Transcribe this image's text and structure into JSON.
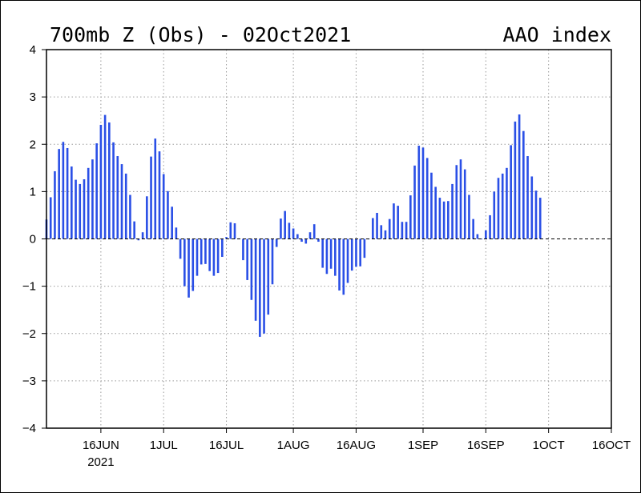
{
  "title_left": "700mb Z (Obs) - 02Oct2021",
  "title_right": "AAO index",
  "chart_data": {
    "type": "bar",
    "title": "700mb Z (Obs) - 02Oct2021",
    "subtitle": "AAO index",
    "xlabel": "",
    "ylabel": "",
    "ylim": [
      -4,
      4
    ],
    "yticks": [
      4,
      3,
      2,
      1,
      0,
      -1,
      -2,
      -3,
      -4
    ],
    "ytick_labels": [
      "4",
      "3",
      "2",
      "1",
      "0",
      "−1",
      "−2",
      "−3",
      "−4"
    ],
    "xlim": [
      "2021-06-03",
      "2021-10-16"
    ],
    "xticks": [
      "2021-06-16",
      "2021-07-01",
      "2021-07-16",
      "2021-08-01",
      "2021-08-16",
      "2021-09-01",
      "2021-09-16",
      "2021-10-01",
      "2021-10-16"
    ],
    "xtick_labels": [
      "16JUN",
      "1JUL",
      "16JUL",
      "1AUG",
      "16AUG",
      "1SEP",
      "16SEP",
      "1OCT",
      "16OCT"
    ],
    "year_label": "2021",
    "grid": true,
    "bar_color": "#2a4fe6",
    "zero_line_style": "dashed",
    "x_start": "2021-06-03",
    "x_end": "2021-10-02",
    "values": [
      0.41,
      0.88,
      1.43,
      1.9,
      2.05,
      1.92,
      1.53,
      1.25,
      1.16,
      1.26,
      1.5,
      1.68,
      2.02,
      2.41,
      2.62,
      2.46,
      2.04,
      1.75,
      1.58,
      1.38,
      0.93,
      0.37,
      -0.03,
      0.14,
      0.9,
      1.74,
      2.12,
      1.85,
      1.37,
      1.01,
      0.68,
      0.24,
      -0.42,
      -1.0,
      -1.24,
      -1.1,
      -0.78,
      -0.54,
      -0.53,
      -0.68,
      -0.78,
      -0.72,
      -0.38,
      0.04,
      0.35,
      0.33,
      0.01,
      -0.45,
      -0.87,
      -1.29,
      -1.73,
      -2.07,
      -2.0,
      -1.6,
      -0.96,
      -0.17,
      0.43,
      0.59,
      0.34,
      0.22,
      0.1,
      -0.06,
      -0.1,
      0.14,
      0.31,
      -0.06,
      -0.61,
      -0.74,
      -0.63,
      -0.78,
      -1.09,
      -1.18,
      -0.93,
      -0.67,
      -0.59,
      -0.58,
      -0.4,
      0.0,
      0.44,
      0.55,
      0.29,
      0.18,
      0.42,
      0.75,
      0.7,
      0.36,
      0.36,
      0.92,
      1.55,
      1.97,
      1.93,
      1.71,
      1.4,
      1.1,
      0.87,
      0.79,
      0.8,
      1.16,
      1.56,
      1.68,
      1.47,
      0.93,
      0.42,
      0.1,
      0.0,
      0.18,
      0.5,
      1.0,
      1.29,
      1.38,
      1.5,
      1.98,
      2.48,
      2.63,
      2.28,
      1.75,
      1.32,
      1.02,
      0.87
    ]
  }
}
